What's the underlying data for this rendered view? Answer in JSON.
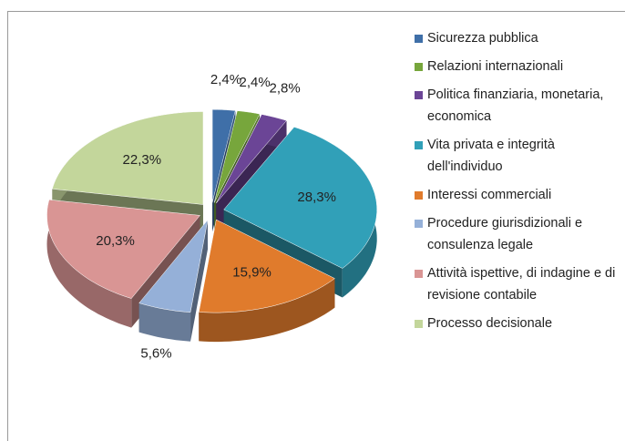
{
  "chart_data": {
    "type": "pie",
    "categories": [
      "Sicurezza pubblica",
      "Relazioni internazionali",
      "Politica finanziaria, monetaria, economica",
      "Vita privata e integrità dell'individuo",
      "Interessi commerciali",
      "Procedure giurisdizionali e consulenza legale",
      "Attività ispettive, di indagine e di revisione contabile",
      "Processo decisionale"
    ],
    "values": [
      2.4,
      2.4,
      2.8,
      28.3,
      15.9,
      5.6,
      20.3,
      22.3
    ],
    "value_labels": [
      "2,4%",
      "2,4%",
      "2,8%",
      "28,3%",
      "15,9%",
      "5,6%",
      "20,3%",
      "22,3%"
    ],
    "colors": [
      "#3f6fa8",
      "#77a63c",
      "#6b4596",
      "#31a0b8",
      "#e07b2c",
      "#95b0d8",
      "#d99594",
      "#c3d69b"
    ]
  }
}
